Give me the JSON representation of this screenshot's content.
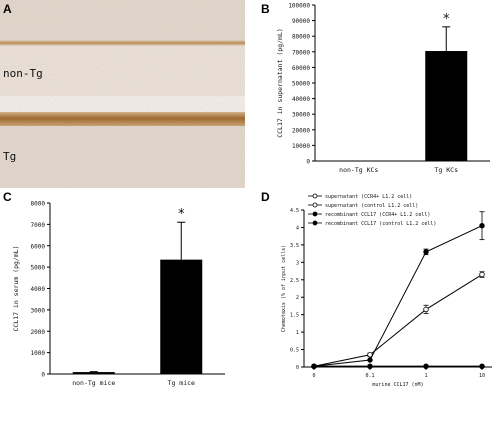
{
  "panels": {
    "a": {
      "letter": "A",
      "label_top": "non-Tg",
      "label_bottom": "Tg"
    },
    "b": {
      "letter": "B"
    },
    "c": {
      "letter": "C"
    },
    "d": {
      "letter": "D"
    }
  },
  "chart_data": [
    {
      "panel": "B",
      "type": "bar",
      "categories": [
        "non-Tg KCs",
        "Tg KCs"
      ],
      "values": [
        0,
        70500
      ],
      "errors": [
        0,
        15500
      ],
      "significance": [
        "",
        "*"
      ],
      "ylabel": "CCL17 in supernatant (pg/mL)",
      "ylim": [
        0,
        100000
      ],
      "yticks": [
        0,
        10000,
        20000,
        30000,
        40000,
        50000,
        60000,
        70000,
        80000,
        90000,
        100000
      ],
      "bar_color": "#000000"
    },
    {
      "panel": "C",
      "type": "bar",
      "categories": [
        "non-Tg mice",
        "Tg mice"
      ],
      "values": [
        90,
        5350
      ],
      "errors": [
        20,
        1750
      ],
      "significance": [
        "",
        "*"
      ],
      "ylabel": "CCL17 in serum (pg/mL)",
      "ylim": [
        0,
        8000
      ],
      "yticks": [
        0,
        1000,
        2000,
        3000,
        4000,
        5000,
        6000,
        7000,
        8000
      ],
      "bar_color": "#000000"
    },
    {
      "panel": "D",
      "type": "line",
      "x": [
        "0",
        "0.1",
        "1",
        "10"
      ],
      "xlabel": "murine CCL17 (nM)",
      "ylabel": "Chemotaxis (% of input cells)",
      "ylim": [
        0,
        4.5
      ],
      "yticks": [
        "0",
        "0.5",
        "1",
        "1.5",
        "2",
        "2.5",
        "3",
        "3.5",
        "4",
        "4.5"
      ],
      "legend": "top-left",
      "series": [
        {
          "name": "supernatant (CCR4+ L1.2 cell)",
          "marker": "open",
          "values": [
            0.02,
            0.35,
            1.65,
            2.65
          ],
          "errors": [
            0.02,
            0.05,
            0.12,
            0.08
          ]
        },
        {
          "name": "supernatant (control L1.2 cell)",
          "marker": "open",
          "values": [
            0.02,
            0.02,
            0.02,
            0.02
          ],
          "errors": [
            0,
            0,
            0,
            0
          ]
        },
        {
          "name": "recombinant CCL17 (CCR4+ L1.2 cell)",
          "marker": "filled",
          "values": [
            0.02,
            0.2,
            3.3,
            4.05
          ],
          "errors": [
            0.02,
            0.03,
            0.08,
            0.4
          ]
        },
        {
          "name": "recombinant CCL17 (control L1.2 cell)",
          "marker": "filled",
          "values": [
            0.02,
            0.02,
            0.02,
            0.02
          ],
          "errors": [
            0,
            0,
            0,
            0
          ]
        }
      ]
    }
  ]
}
